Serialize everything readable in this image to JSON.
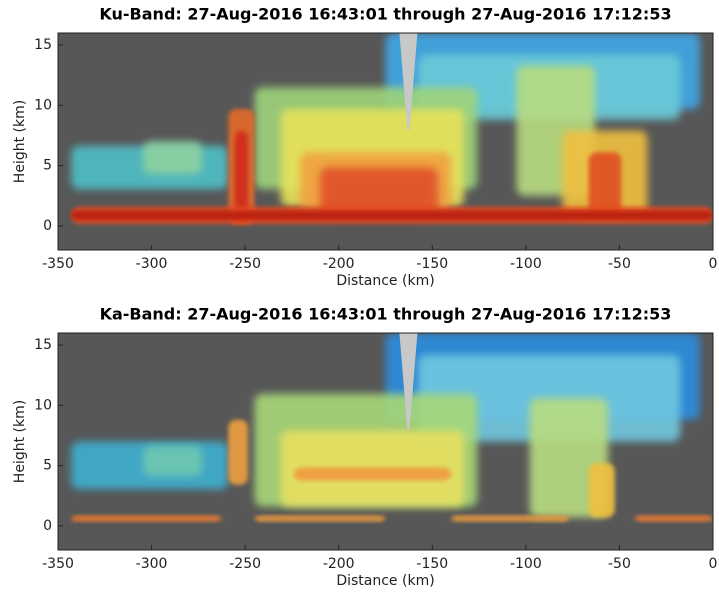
{
  "chart_data": [
    {
      "type": "heatmap",
      "title": "Ku-Band: 27-Aug-2016 16:43:01 through 27-Aug-2016 17:12:53",
      "x_label": "Distance (km)",
      "y_label": "Height (km)",
      "xlim": [
        -350,
        0
      ],
      "xticks": [
        -350,
        -300,
        -250,
        -200,
        -150,
        -100,
        -50,
        0
      ],
      "ylim": [
        -2,
        16
      ],
      "yticks": [
        0,
        5,
        10,
        15
      ],
      "background": "#575757"
    },
    {
      "type": "heatmap",
      "title": "Ka-Band: 27-Aug-2016 16:43:01 through 27-Aug-2016 17:12:53",
      "x_label": "Distance (km)",
      "y_label": "Height (km)",
      "xlim": [
        -350,
        0
      ],
      "xticks": [
        -350,
        -300,
        -250,
        -200,
        -150,
        -100,
        -50,
        0
      ],
      "ylim": [
        -2,
        16
      ],
      "yticks": [
        0,
        5,
        10,
        15
      ],
      "background": "#575757"
    }
  ]
}
